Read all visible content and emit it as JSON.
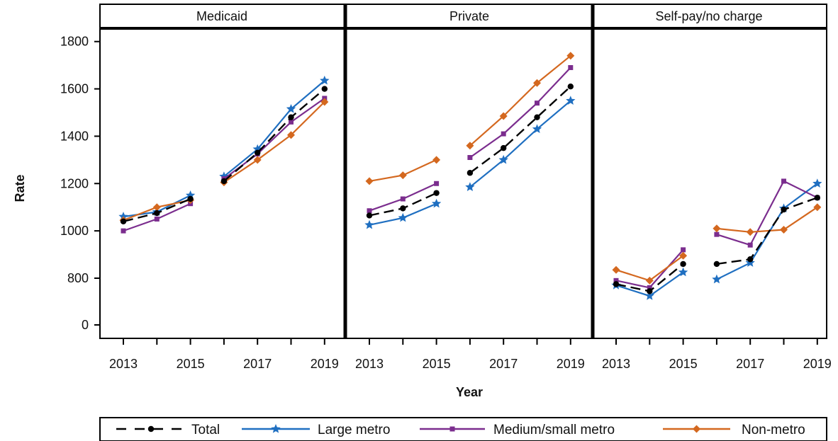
{
  "chart_data": {
    "type": "line",
    "ylabel": "Rate",
    "xlabel": "Year",
    "x": [
      2013,
      2014,
      2015,
      2016,
      2017,
      2018,
      2019
    ],
    "x_ticks": [
      "2013",
      "2015",
      "2017",
      "2019"
    ],
    "y_ticks": [
      "0",
      "800",
      "1000",
      "1200",
      "1400",
      "1600",
      "1800"
    ],
    "y_axis_break": "between 0 and 800",
    "legend_position": "bottom",
    "line_break_between": [
      2015,
      2016
    ],
    "panels": [
      {
        "title": "Medicaid",
        "series": [
          {
            "name": "Total",
            "values": [
              1040,
              1075,
              1135,
              1210,
              1330,
              1480,
              1600
            ]
          },
          {
            "name": "Large metro",
            "values": [
              1060,
              1080,
              1150,
              1230,
              1345,
              1515,
              1635
            ]
          },
          {
            "name": "Medium/small metro",
            "values": [
              1000,
              1050,
              1115,
              1220,
              1325,
              1460,
              1560
            ]
          },
          {
            "name": "Non-metro",
            "values": [
              1045,
              1100,
              1130,
              1205,
              1300,
              1405,
              1545
            ]
          }
        ]
      },
      {
        "title": "Private",
        "series": [
          {
            "name": "Total",
            "values": [
              1065,
              1095,
              1160,
              1245,
              1350,
              1480,
              1610
            ]
          },
          {
            "name": "Large metro",
            "values": [
              1025,
              1055,
              1115,
              1185,
              1300,
              1430,
              1550
            ]
          },
          {
            "name": "Medium/small metro",
            "values": [
              1085,
              1135,
              1200,
              1310,
              1410,
              1540,
              1690
            ]
          },
          {
            "name": "Non-metro",
            "values": [
              1210,
              1235,
              1300,
              1360,
              1485,
              1625,
              1740
            ]
          }
        ]
      },
      {
        "title": "Self-pay/no charge",
        "series": [
          {
            "name": "Total",
            "values": [
              775,
              745,
              860,
              860,
              880,
              1090,
              1140
            ]
          },
          {
            "name": "Large metro",
            "values": [
              770,
              725,
              825,
              795,
              865,
              1095,
              1200
            ]
          },
          {
            "name": "Medium/small metro",
            "values": [
              790,
              760,
              920,
              985,
              940,
              1210,
              1140
            ]
          },
          {
            "name": "Non-metro",
            "values": [
              835,
              790,
              895,
              1010,
              995,
              1005,
              1100
            ]
          }
        ]
      }
    ]
  },
  "series_styles": [
    {
      "name": "Total",
      "color": "#000000",
      "marker": "circle",
      "dash": "dashed"
    },
    {
      "name": "Large metro",
      "color": "#1f6fc1",
      "marker": "star",
      "dash": "solid"
    },
    {
      "name": "Medium/small metro",
      "color": "#7b2d8e",
      "marker": "square",
      "dash": "solid"
    },
    {
      "name": "Non-metro",
      "color": "#d4681f",
      "marker": "diamond",
      "dash": "solid"
    }
  ],
  "legend": {
    "items": [
      "Total",
      "Large metro",
      "Medium/small metro",
      "Non-metro"
    ]
  }
}
